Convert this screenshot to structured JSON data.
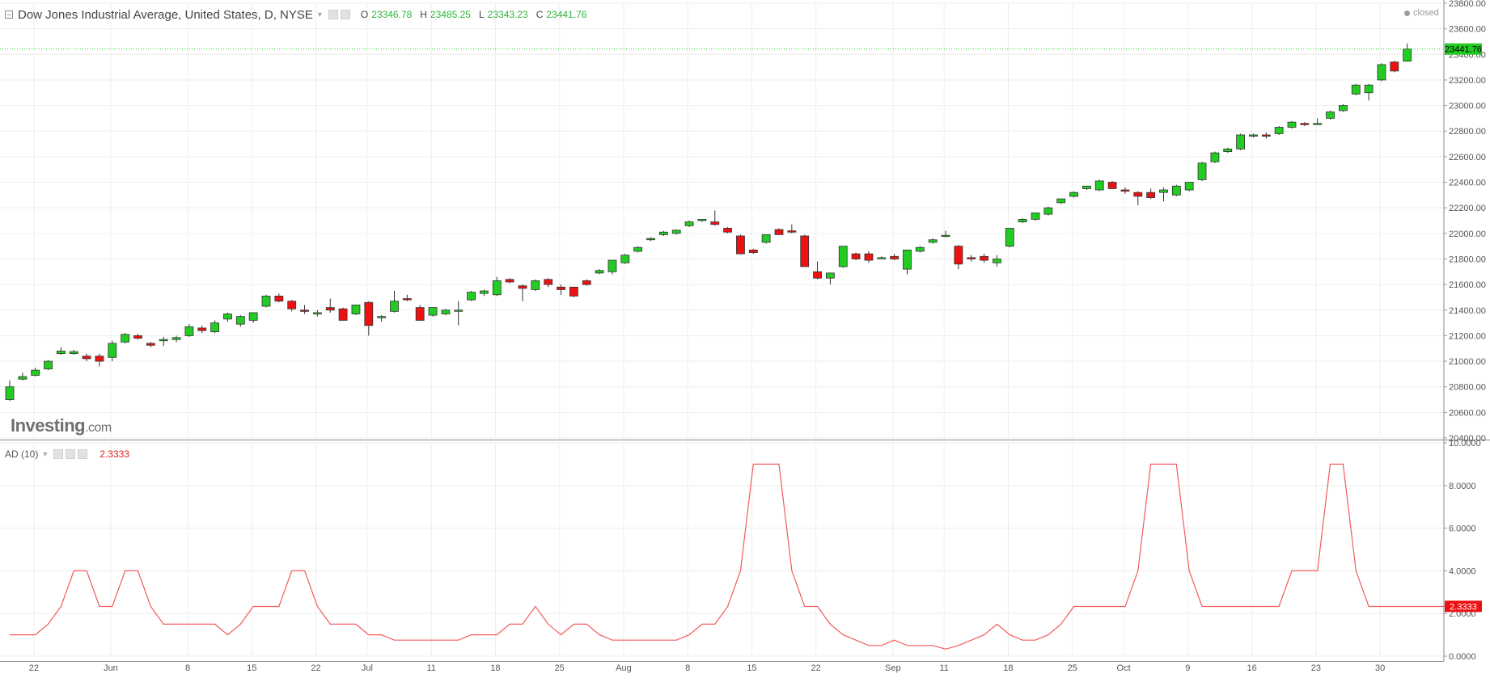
{
  "header": {
    "title": "Dow Jones Industrial Average, United States, D, NYSE",
    "open_label": "O",
    "open": "23346.78",
    "high_label": "H",
    "high": "23485.25",
    "low_label": "L",
    "low": "23343.23",
    "close_label": "C",
    "close": "23441.76",
    "status": "closed"
  },
  "logo": {
    "main": "Investing",
    "suffix": ".com"
  },
  "indicator": {
    "name": "AD (10)",
    "value": "2.3333"
  },
  "colors": {
    "up": "#22cc22",
    "down": "#ee1111",
    "grid": "#eeeeee",
    "ad_line": "#f25b5b",
    "price_tag": "#22cc22",
    "ad_tag": "#ee1111"
  },
  "chart_data": [
    {
      "type": "candlestick",
      "title": "Dow Jones Industrial Average, United States, D, NYSE",
      "ylim": [
        20400,
        23800
      ],
      "y_ticks": [
        20400,
        20600,
        20800,
        21000,
        21200,
        21400,
        21600,
        21800,
        22000,
        22200,
        22400,
        22600,
        22800,
        23000,
        23200,
        23400,
        23600,
        23800
      ],
      "y_tick_labels": [
        "20400.00",
        "20600.00",
        "20800.00",
        "21000.00",
        "21200.00",
        "21400.00",
        "21600.00",
        "21800.00",
        "22000.00",
        "22200.00",
        "22400.00",
        "22600.00",
        "22800.00",
        "23000.00",
        "23200.00",
        "23400.00",
        "23600.00",
        "23800.00"
      ],
      "last_price": 23441.76,
      "last_price_label": "23441.76",
      "grid": true,
      "x_axis_labels": [
        "22",
        "Jun",
        "8",
        "15",
        "22",
        "Jul",
        "11",
        "18",
        "25",
        "Aug",
        "8",
        "15",
        "22",
        "Sep",
        "11",
        "18",
        "25",
        "Oct",
        "9",
        "16",
        "23",
        "30"
      ],
      "candles": [
        {
          "o": 20700,
          "h": 20850,
          "l": 20690,
          "c": 20800
        },
        {
          "o": 20860,
          "h": 20910,
          "l": 20850,
          "c": 20880
        },
        {
          "o": 20890,
          "h": 20950,
          "l": 20880,
          "c": 20930
        },
        {
          "o": 20940,
          "h": 21010,
          "l": 20930,
          "c": 21000
        },
        {
          "o": 21060,
          "h": 21110,
          "l": 21050,
          "c": 21080
        },
        {
          "o": 21060,
          "h": 21090,
          "l": 21050,
          "c": 21075
        },
        {
          "o": 21040,
          "h": 21060,
          "l": 21000,
          "c": 21020
        },
        {
          "o": 21040,
          "h": 21060,
          "l": 20960,
          "c": 21000
        },
        {
          "o": 21030,
          "h": 21160,
          "l": 21000,
          "c": 21140
        },
        {
          "o": 21150,
          "h": 21220,
          "l": 21140,
          "c": 21210
        },
        {
          "o": 21200,
          "h": 21215,
          "l": 21170,
          "c": 21180
        },
        {
          "o": 21140,
          "h": 21150,
          "l": 21110,
          "c": 21125
        },
        {
          "o": 21160,
          "h": 21190,
          "l": 21120,
          "c": 21170
        },
        {
          "o": 21170,
          "h": 21200,
          "l": 21150,
          "c": 21185
        },
        {
          "o": 21200,
          "h": 21290,
          "l": 21190,
          "c": 21270
        },
        {
          "o": 21260,
          "h": 21280,
          "l": 21220,
          "c": 21240
        },
        {
          "o": 21230,
          "h": 21320,
          "l": 21220,
          "c": 21300
        },
        {
          "o": 21330,
          "h": 21380,
          "l": 21310,
          "c": 21370
        },
        {
          "o": 21290,
          "h": 21360,
          "l": 21270,
          "c": 21350
        },
        {
          "o": 21320,
          "h": 21380,
          "l": 21300,
          "c": 21380
        },
        {
          "o": 21430,
          "h": 21520,
          "l": 21420,
          "c": 21510
        },
        {
          "o": 21510,
          "h": 21530,
          "l": 21460,
          "c": 21470
        },
        {
          "o": 21470,
          "h": 21480,
          "l": 21390,
          "c": 21410
        },
        {
          "o": 21400,
          "h": 21440,
          "l": 21370,
          "c": 21390
        },
        {
          "o": 21370,
          "h": 21400,
          "l": 21350,
          "c": 21380
        },
        {
          "o": 21420,
          "h": 21490,
          "l": 21380,
          "c": 21400
        },
        {
          "o": 21410,
          "h": 21420,
          "l": 21320,
          "c": 21320
        },
        {
          "o": 21370,
          "h": 21440,
          "l": 21360,
          "c": 21440
        },
        {
          "o": 21460,
          "h": 21470,
          "l": 21200,
          "c": 21280
        },
        {
          "o": 21340,
          "h": 21360,
          "l": 21310,
          "c": 21350
        },
        {
          "o": 21390,
          "h": 21550,
          "l": 21380,
          "c": 21470
        },
        {
          "o": 21490,
          "h": 21520,
          "l": 21470,
          "c": 21480
        },
        {
          "o": 21420,
          "h": 21440,
          "l": 21330,
          "c": 21320
        },
        {
          "o": 21360,
          "h": 21420,
          "l": 21350,
          "c": 21420
        },
        {
          "o": 21370,
          "h": 21410,
          "l": 21360,
          "c": 21400
        },
        {
          "o": 21400,
          "h": 21470,
          "l": 21280,
          "c": 21400
        },
        {
          "o": 21480,
          "h": 21550,
          "l": 21470,
          "c": 21540
        },
        {
          "o": 21530,
          "h": 21560,
          "l": 21510,
          "c": 21550
        },
        {
          "o": 21520,
          "h": 21660,
          "l": 21510,
          "c": 21630
        },
        {
          "o": 21640,
          "h": 21650,
          "l": 21610,
          "c": 21620
        },
        {
          "o": 21590,
          "h": 21600,
          "l": 21470,
          "c": 21570
        },
        {
          "o": 21560,
          "h": 21640,
          "l": 21550,
          "c": 21630
        },
        {
          "o": 21640,
          "h": 21650,
          "l": 21580,
          "c": 21600
        },
        {
          "o": 21580,
          "h": 21600,
          "l": 21520,
          "c": 21560
        },
        {
          "o": 21580,
          "h": 21580,
          "l": 21500,
          "c": 21510
        },
        {
          "o": 21630,
          "h": 21640,
          "l": 21590,
          "c": 21600
        },
        {
          "o": 21690,
          "h": 21720,
          "l": 21680,
          "c": 21710
        },
        {
          "o": 21700,
          "h": 21790,
          "l": 21680,
          "c": 21790
        },
        {
          "o": 21770,
          "h": 21840,
          "l": 21760,
          "c": 21830
        },
        {
          "o": 21860,
          "h": 21900,
          "l": 21850,
          "c": 21890
        },
        {
          "o": 21950,
          "h": 21970,
          "l": 21940,
          "c": 21960
        },
        {
          "o": 21990,
          "h": 22020,
          "l": 21980,
          "c": 22010
        },
        {
          "o": 22000,
          "h": 22030,
          "l": 21990,
          "c": 22025
        },
        {
          "o": 22060,
          "h": 22100,
          "l": 22050,
          "c": 22090
        },
        {
          "o": 22100,
          "h": 22110,
          "l": 22090,
          "c": 22110
        },
        {
          "o": 22090,
          "h": 22180,
          "l": 22060,
          "c": 22070
        },
        {
          "o": 22040,
          "h": 22050,
          "l": 22000,
          "c": 22010
        },
        {
          "o": 21980,
          "h": 21990,
          "l": 21840,
          "c": 21840
        },
        {
          "o": 21870,
          "h": 21880,
          "l": 21840,
          "c": 21850
        },
        {
          "o": 21930,
          "h": 21990,
          "l": 21920,
          "c": 21990
        },
        {
          "o": 22030,
          "h": 22040,
          "l": 21990,
          "c": 21990
        },
        {
          "o": 22020,
          "h": 22070,
          "l": 22000,
          "c": 22010
        },
        {
          "o": 21980,
          "h": 21990,
          "l": 21740,
          "c": 21740
        },
        {
          "o": 21700,
          "h": 21780,
          "l": 21640,
          "c": 21650
        },
        {
          "o": 21650,
          "h": 21690,
          "l": 21600,
          "c": 21690
        },
        {
          "o": 21740,
          "h": 21900,
          "l": 21730,
          "c": 21900
        },
        {
          "o": 21840,
          "h": 21850,
          "l": 21790,
          "c": 21800
        },
        {
          "o": 21840,
          "h": 21860,
          "l": 21770,
          "c": 21790
        },
        {
          "o": 21810,
          "h": 21820,
          "l": 21800,
          "c": 21810
        },
        {
          "o": 21820,
          "h": 21840,
          "l": 21790,
          "c": 21800
        },
        {
          "o": 21720,
          "h": 21870,
          "l": 21680,
          "c": 21870
        },
        {
          "o": 21860,
          "h": 21900,
          "l": 21850,
          "c": 21890
        },
        {
          "o": 21930,
          "h": 21960,
          "l": 21920,
          "c": 21950
        },
        {
          "o": 21980,
          "h": 22020,
          "l": 21970,
          "c": 21985
        },
        {
          "o": 21900,
          "h": 21910,
          "l": 21720,
          "c": 21760
        },
        {
          "o": 21810,
          "h": 21830,
          "l": 21780,
          "c": 21800
        },
        {
          "o": 21820,
          "h": 21840,
          "l": 21770,
          "c": 21790
        },
        {
          "o": 21770,
          "h": 21830,
          "l": 21740,
          "c": 21800
        },
        {
          "o": 21900,
          "h": 22040,
          "l": 21890,
          "c": 22040
        },
        {
          "o": 22090,
          "h": 22120,
          "l": 22080,
          "c": 22110
        },
        {
          "o": 22110,
          "h": 22160,
          "l": 22100,
          "c": 22160
        },
        {
          "o": 22150,
          "h": 22210,
          "l": 22140,
          "c": 22200
        },
        {
          "o": 22240,
          "h": 22270,
          "l": 22230,
          "c": 22270
        },
        {
          "o": 22290,
          "h": 22330,
          "l": 22280,
          "c": 22320
        },
        {
          "o": 22350,
          "h": 22370,
          "l": 22340,
          "c": 22370
        },
        {
          "o": 22340,
          "h": 22420,
          "l": 22330,
          "c": 22410
        },
        {
          "o": 22400,
          "h": 22410,
          "l": 22350,
          "c": 22350
        },
        {
          "o": 22340,
          "h": 22360,
          "l": 22310,
          "c": 22330
        },
        {
          "o": 22320,
          "h": 22330,
          "l": 22220,
          "c": 22290
        },
        {
          "o": 22320,
          "h": 22350,
          "l": 22270,
          "c": 22280
        },
        {
          "o": 22320,
          "h": 22360,
          "l": 22250,
          "c": 22340
        },
        {
          "o": 22300,
          "h": 22380,
          "l": 22290,
          "c": 22370
        },
        {
          "o": 22340,
          "h": 22400,
          "l": 22330,
          "c": 22400
        },
        {
          "o": 22420,
          "h": 22560,
          "l": 22410,
          "c": 22550
        },
        {
          "o": 22560,
          "h": 22640,
          "l": 22550,
          "c": 22630
        },
        {
          "o": 22640,
          "h": 22670,
          "l": 22630,
          "c": 22660
        },
        {
          "o": 22660,
          "h": 22780,
          "l": 22650,
          "c": 22770
        },
        {
          "o": 22760,
          "h": 22780,
          "l": 22750,
          "c": 22770
        },
        {
          "o": 22770,
          "h": 22790,
          "l": 22740,
          "c": 22760
        },
        {
          "o": 22780,
          "h": 22840,
          "l": 22770,
          "c": 22830
        },
        {
          "o": 22830,
          "h": 22880,
          "l": 22820,
          "c": 22870
        },
        {
          "o": 22860,
          "h": 22870,
          "l": 22840,
          "c": 22850
        },
        {
          "o": 22860,
          "h": 22900,
          "l": 22850,
          "c": 22860
        },
        {
          "o": 22900,
          "h": 22960,
          "l": 22890,
          "c": 22950
        },
        {
          "o": 22960,
          "h": 23010,
          "l": 22950,
          "c": 23000
        },
        {
          "o": 23090,
          "h": 23170,
          "l": 23080,
          "c": 23160
        },
        {
          "o": 23100,
          "h": 23170,
          "l": 23040,
          "c": 23160
        },
        {
          "o": 23200,
          "h": 23330,
          "l": 23190,
          "c": 23320
        },
        {
          "o": 23340,
          "h": 23350,
          "l": 23260,
          "c": 23270
        },
        {
          "o": 23346.78,
          "h": 23485.25,
          "l": 23343.23,
          "c": 23441.76
        }
      ]
    },
    {
      "type": "line",
      "title": "AD (10)",
      "ylim": [
        0,
        10
      ],
      "y_ticks": [
        0,
        2,
        4,
        6,
        8,
        10
      ],
      "y_tick_labels": [
        "0.0000",
        "2.0000",
        "4.0000",
        "6.0000",
        "8.0000",
        "10.0000"
      ],
      "last_value": 2.3333,
      "last_value_label": "2.3333",
      "series": [
        {
          "values": [
            1,
            1,
            1,
            1.5,
            2.33,
            4,
            4,
            2.33,
            2.33,
            4,
            4,
            2.33,
            1.5,
            1.5,
            1.5,
            1.5,
            1.5,
            1,
            1.5,
            2.33,
            2.33,
            2.33,
            4,
            4,
            2.33,
            1.5,
            1.5,
            1.5,
            1,
            1,
            0.75,
            0.75,
            0.75,
            0.75,
            0.75,
            0.75,
            1,
            1,
            1,
            1.5,
            1.5,
            2.33,
            1.5,
            1,
            1.5,
            1.5,
            1,
            0.75,
            0.75,
            0.75,
            0.75,
            0.75,
            0.75,
            1,
            1.5,
            1.5,
            2.33,
            4,
            9,
            9,
            9,
            4,
            2.33,
            2.33,
            1.5,
            1,
            0.75,
            0.5,
            0.5,
            0.75,
            0.5,
            0.5,
            0.5,
            0.33,
            0.5,
            0.75,
            1,
            1.5,
            1,
            0.75,
            0.75,
            1,
            1.5,
            2.33,
            2.33,
            2.33,
            2.33,
            2.33,
            4,
            9,
            9,
            9,
            4,
            2.33,
            2.33,
            2.33,
            2.33,
            2.33,
            2.33,
            2.33,
            4,
            4,
            4,
            9,
            9,
            4,
            2.33,
            2.33,
            2.33,
            2.33,
            2.33,
            2.33,
            2.33,
            2.3333
          ]
        }
      ]
    }
  ]
}
